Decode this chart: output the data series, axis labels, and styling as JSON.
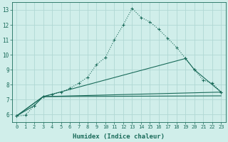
{
  "xlabel": "Humidex (Indice chaleur)",
  "bg_color": "#d0eeea",
  "grid_color": "#b0d8d4",
  "line_color": "#1a6b5a",
  "xlim": [
    -0.5,
    23.5
  ],
  "ylim": [
    5.5,
    13.5
  ],
  "xticks": [
    0,
    1,
    2,
    3,
    4,
    5,
    6,
    7,
    8,
    9,
    10,
    11,
    12,
    13,
    14,
    15,
    16,
    17,
    18,
    19,
    20,
    21,
    22,
    23
  ],
  "yticks": [
    6,
    7,
    8,
    9,
    10,
    11,
    12,
    13
  ],
  "curve1_x": [
    0,
    1,
    2,
    3,
    4,
    5,
    6,
    7,
    8,
    9,
    10,
    11,
    12,
    13,
    14,
    15,
    16,
    17,
    18,
    19,
    20,
    21,
    22,
    23
  ],
  "curve1_y": [
    5.9,
    5.95,
    6.6,
    7.2,
    7.35,
    7.5,
    7.75,
    8.1,
    8.5,
    9.35,
    9.82,
    11.0,
    12.0,
    13.1,
    12.5,
    12.2,
    11.7,
    11.1,
    10.5,
    9.75,
    9.0,
    8.3,
    8.1,
    7.5
  ],
  "curve2_x": [
    0,
    2,
    3,
    19,
    20,
    23
  ],
  "curve2_y": [
    5.9,
    6.6,
    7.2,
    9.75,
    9.0,
    7.5
  ],
  "curve3_x": [
    0,
    3,
    23
  ],
  "curve3_y": [
    5.9,
    7.2,
    7.5
  ],
  "curve4_x": [
    0,
    3,
    23
  ],
  "curve4_y": [
    5.9,
    7.2,
    7.25
  ]
}
